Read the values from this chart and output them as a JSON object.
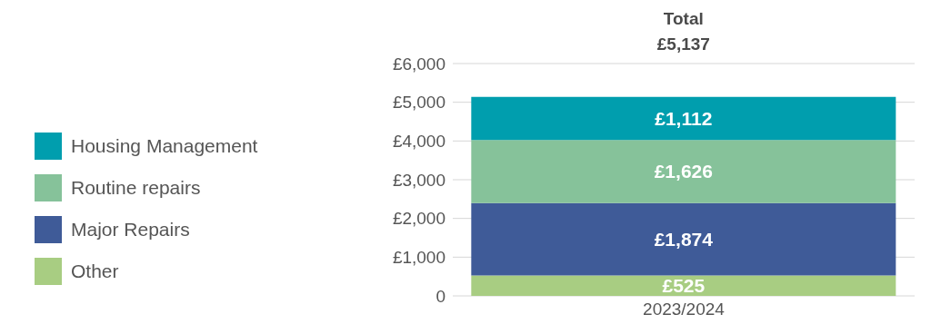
{
  "chart_data": {
    "type": "bar",
    "stacked": true,
    "categories": [
      "2023/2024"
    ],
    "series": [
      {
        "name": "Other",
        "color": "#a8cd82",
        "values": [
          525
        ],
        "value_labels": [
          "£525"
        ]
      },
      {
        "name": "Major Repairs",
        "color": "#3f5b98",
        "values": [
          1874
        ],
        "value_labels": [
          "£1,874"
        ]
      },
      {
        "name": "Routine repairs",
        "color": "#86c29a",
        "values": [
          1626
        ],
        "value_labels": [
          "£1,626"
        ]
      },
      {
        "name": "Housing Management",
        "color": "#009eae",
        "values": [
          1112
        ],
        "value_labels": [
          "£1,112"
        ]
      }
    ],
    "totals": [
      "£5,137"
    ],
    "annotations": [
      "Total"
    ],
    "ylim": [
      0,
      6000
    ],
    "yticks": [
      0,
      {
        "value": 1000,
        "label": "£1,000"
      },
      {
        "value": 2000,
        "label": "£2,000"
      },
      {
        "value": 3000,
        "label": "£3,000"
      },
      {
        "value": 4000,
        "label": "£4,000"
      },
      {
        "value": 5000,
        "label": "£5,000"
      },
      {
        "value": 6000,
        "label": "£6,000"
      }
    ],
    "grid": "y",
    "legend": "left"
  }
}
